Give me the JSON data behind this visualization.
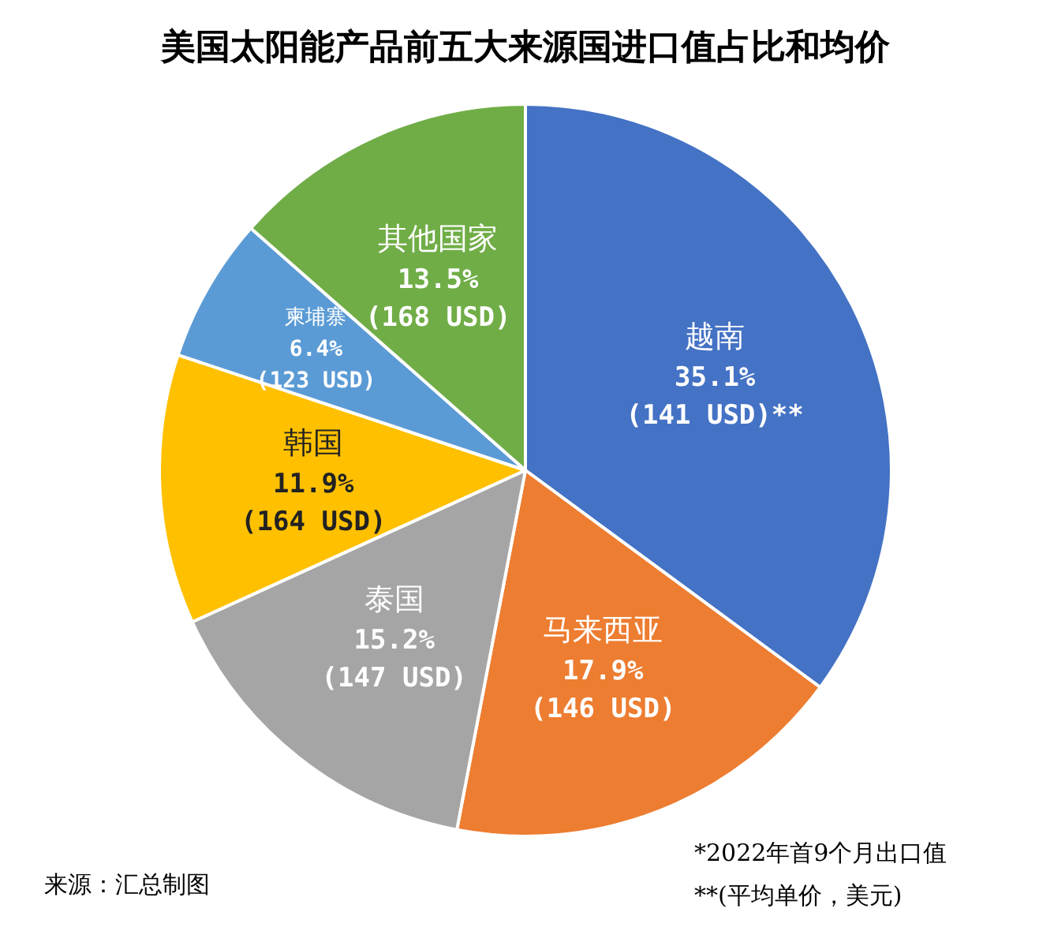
{
  "chart_data": {
    "type": "pie",
    "title": "美国太阳能产品前五大来源国进口值占比和均价",
    "categories": [
      "越南",
      "马来西亚",
      "泰国",
      "韩国",
      "柬埔寨",
      "其他国家"
    ],
    "values": [
      35.1,
      17.9,
      15.2,
      11.9,
      6.4,
      13.5
    ],
    "colors": [
      "#4472c4",
      "#ed7d31",
      "#a5a5a5",
      "#ffc000",
      "#5b9bd5",
      "#70ad47"
    ],
    "value_labels": [
      "35.1%\n(141 USD)**",
      "17.9%\n(146 USD)",
      "15.2%\n(147 USD)",
      "11.9%\n(164 USD)",
      "6.4%\n(123 USD)",
      "13.5%\n(168 USD)"
    ],
    "annotations": [
      "来源：汇总制图",
      "*2022年首9个月出口值",
      "**(平均单价，美元)"
    ],
    "legend": false
  }
}
